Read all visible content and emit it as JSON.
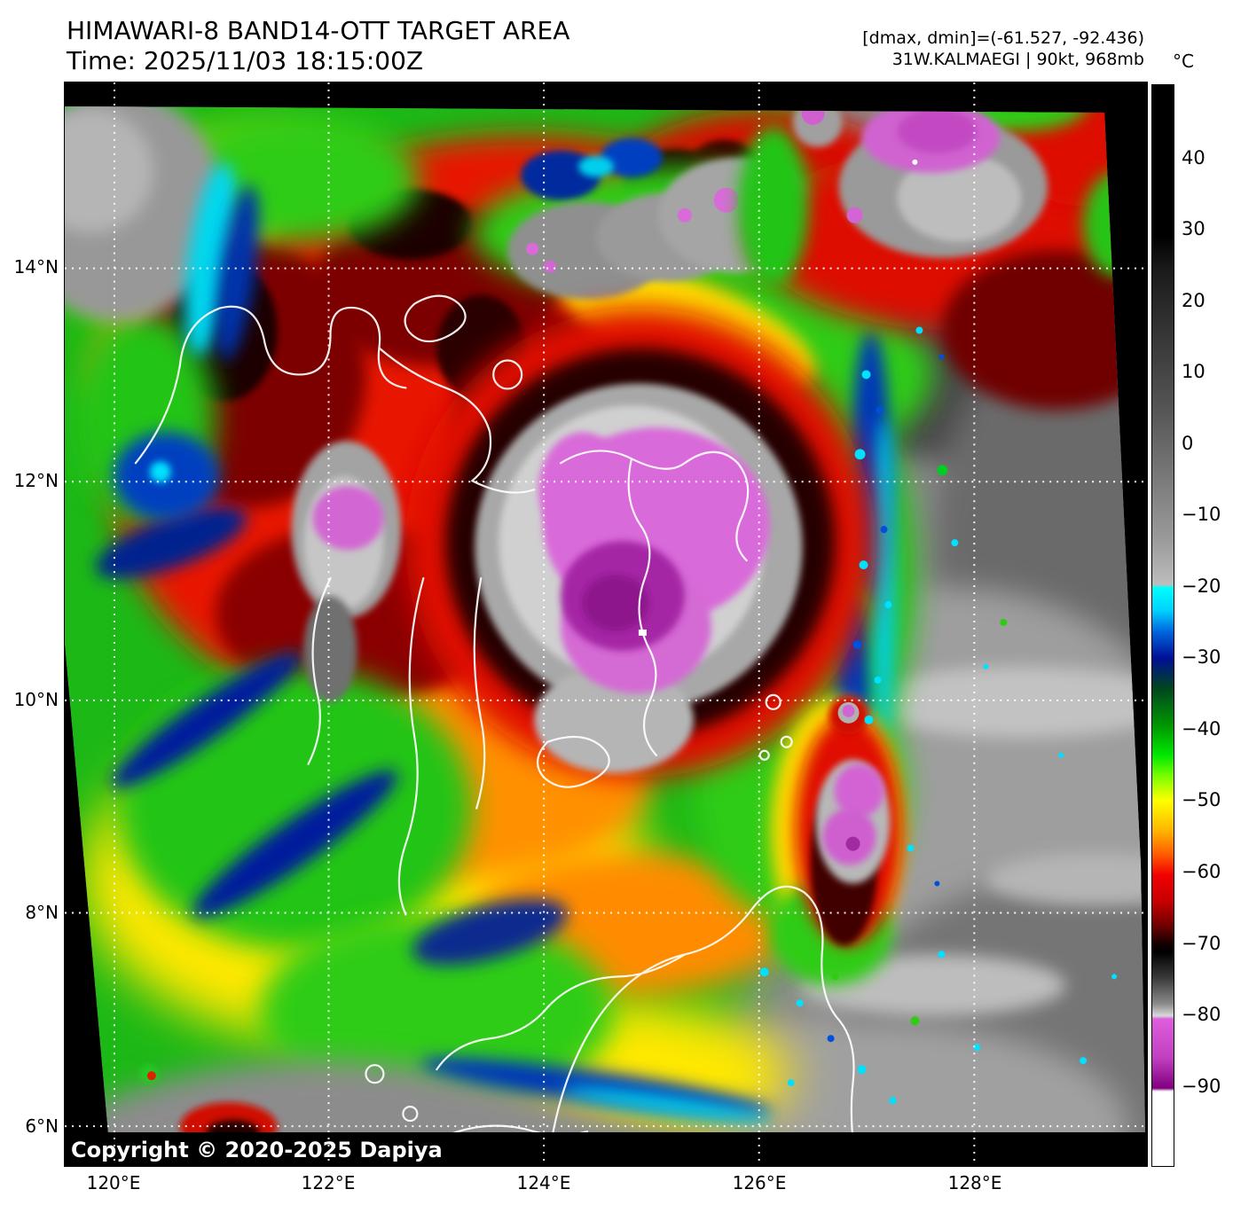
{
  "header": {
    "title": "HIMAWARI-8 BAND14-OTT TARGET AREA",
    "time": "Time: 2025/11/03 18:15:00Z",
    "dmax_dmin": "[dmax, dmin]=(-61.527, -92.436)",
    "storm": "31W.KALMAEGI | 90kt, 968mb"
  },
  "colorbar": {
    "unit": "°C",
    "ticks": [
      "40",
      "30",
      "20",
      "10",
      "0",
      "−10",
      "−20",
      "−30",
      "−40",
      "−50",
      "−60",
      "−70",
      "−80",
      "−90"
    ]
  },
  "axes": {
    "lat": [
      "14°N",
      "12°N",
      "10°N",
      "8°N",
      "6°N"
    ],
    "lon": [
      "120°E",
      "122°E",
      "124°E",
      "126°E",
      "128°E"
    ]
  },
  "footer": {
    "copyright": "Copyright © 2020-2025 Dapiya"
  },
  "chart_data": {
    "type": "heatmap",
    "title": "HIMAWARI-8 BAND14-OTT TARGET AREA",
    "subtitle": "Time: 2025/11/03 18:15:00Z",
    "annotations": [
      "[dmax, dmin]=(-61.527, -92.436)",
      "31W.KALMAEGI | 90kt, 968mb"
    ],
    "colorbar_unit": "°C",
    "colorbar_tick_values": [
      40,
      30,
      20,
      10,
      0,
      -10,
      -20,
      -30,
      -40,
      -50,
      -60,
      -70,
      -80,
      -90
    ],
    "colorbar_segments": [
      {
        "from_c": 50,
        "to_c": 30,
        "color": "#000000"
      },
      {
        "from_c": 30,
        "to_c": -20,
        "color": "gray ramp #1a1a1a to #bdbdbd"
      },
      {
        "from_c": -20,
        "to_c": -30,
        "color": "cyan #00ffff to navy #000f96"
      },
      {
        "from_c": -30,
        "to_c": -50,
        "color": "dark green to bright green #00e800 to yellow #ffff00"
      },
      {
        "from_c": -50,
        "to_c": -70,
        "color": "yellow to orange to red #f00000 to black"
      },
      {
        "from_c": -70,
        "to_c": -80,
        "color": "black to light gray #d8d8d8"
      },
      {
        "from_c": -80,
        "to_c": -90,
        "color": "magenta #dd5fdd to purple #800080"
      },
      {
        "from_c": -90,
        "to_c": -101,
        "color": "#ffffff"
      }
    ],
    "lat_ticks_deg_n": [
      14,
      12,
      10,
      8,
      6
    ],
    "lon_ticks_deg_e": [
      120,
      122,
      124,
      126,
      128
    ],
    "observed_dmax_c": -61.527,
    "observed_dmin_c": -92.436,
    "storm": {
      "id": "31W",
      "name": "KALMAEGI",
      "intensity_kt": 90,
      "pressure_mb": 968
    }
  }
}
